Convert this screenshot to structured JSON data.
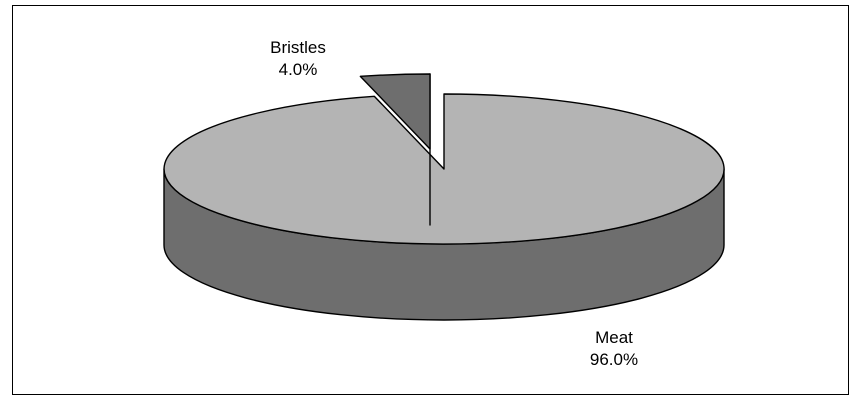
{
  "chart_data": {
    "type": "pie",
    "title": "",
    "categories": [
      "Bristles",
      "Meat"
    ],
    "values": [
      4.0,
      96.0
    ],
    "value_labels": [
      "4.0%",
      "96.0%"
    ],
    "exploded": [
      "Bristles"
    ],
    "style": "3d",
    "colors": {
      "top": "#b4b4b4",
      "side": "#6e6e6e",
      "inner": "#4a4a4a",
      "outline": "#000000"
    },
    "legend": "none",
    "grid": false
  }
}
